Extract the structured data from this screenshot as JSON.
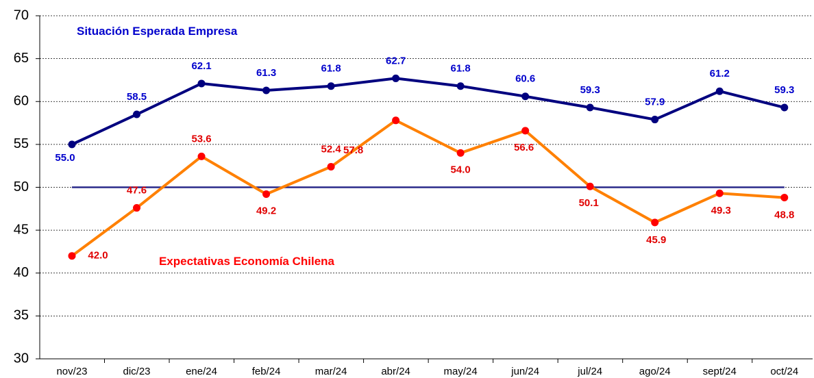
{
  "chart_data": {
    "type": "line",
    "categories": [
      "nov/23",
      "dic/23",
      "ene/24",
      "feb/24",
      "mar/24",
      "abr/24",
      "may/24",
      "jun/24",
      "jul/24",
      "ago/24",
      "sept/24",
      "oct/24"
    ],
    "series": [
      {
        "name": "Situación Esperada Empresa",
        "color": "#00007f",
        "label_color": "#0000cc",
        "values": [
          55.0,
          58.5,
          62.1,
          61.3,
          61.8,
          62.7,
          61.8,
          60.6,
          59.3,
          57.9,
          61.2,
          59.3
        ],
        "value_labels": [
          "55.0",
          "58.5",
          "62.1",
          "61.3",
          "61.8",
          "62.7",
          "61.8",
          "60.6",
          "59.3",
          "57.9",
          "61.2",
          "59.3"
        ]
      },
      {
        "name": "Expectativas Economía Chilena",
        "color": "#ff8000",
        "marker_color": "#ff0000",
        "label_color": "#e00000",
        "values": [
          42.0,
          47.6,
          53.6,
          49.2,
          52.4,
          57.8,
          54.0,
          56.6,
          50.1,
          45.9,
          49.3,
          48.8
        ],
        "value_labels": [
          "42.0",
          "47.6",
          "53.6",
          "49.2",
          "52.4",
          "57.8",
          "54.0",
          "56.6",
          "50.1",
          "45.9",
          "49.3",
          "48.8"
        ]
      }
    ],
    "reference_line": 50,
    "ylim": [
      30,
      70
    ],
    "yticks": [
      30,
      35,
      40,
      45,
      50,
      55,
      60,
      65,
      70
    ],
    "grid": true
  }
}
